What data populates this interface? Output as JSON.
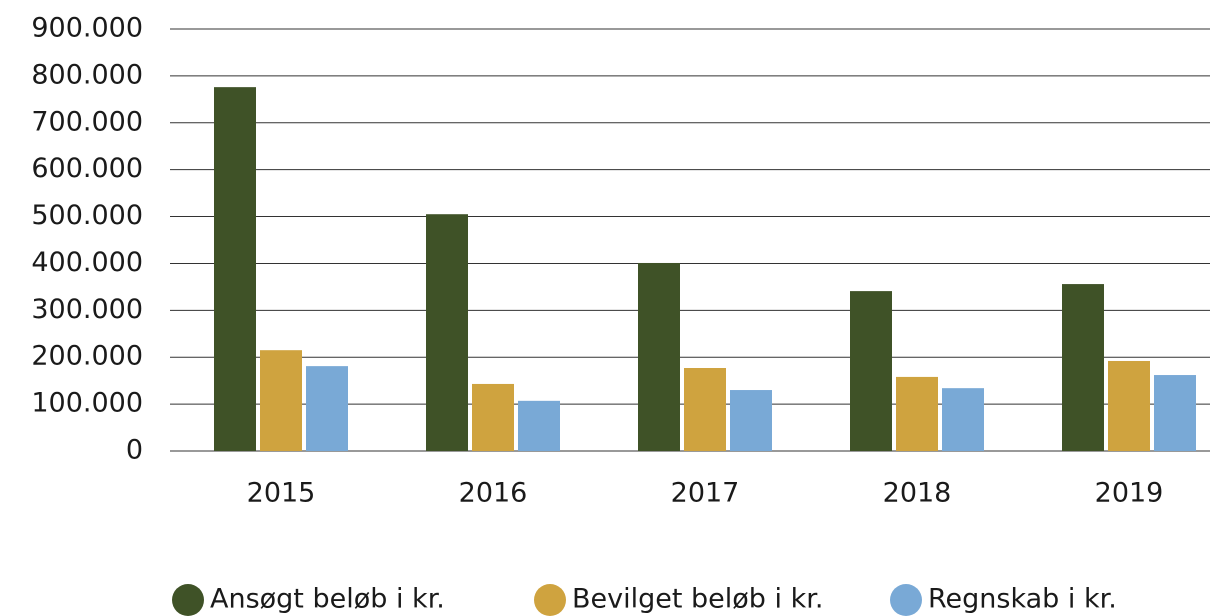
{
  "chart_data": {
    "type": "bar",
    "categories": [
      "2015",
      "2016",
      "2017",
      "2018",
      "2019"
    ],
    "series": [
      {
        "name": "Ansøgt beløb i kr.",
        "color": "#3f5227",
        "values": [
          776000,
          505000,
          401000,
          341000,
          356000
        ]
      },
      {
        "name": "Bevilget beløb i kr.",
        "color": "#cfa33f",
        "values": [
          215000,
          143000,
          177000,
          158000,
          192000
        ]
      },
      {
        "name": "Regnskab i kr.",
        "color": "#79a9d6",
        "values": [
          181000,
          107000,
          130000,
          134000,
          162000
        ]
      }
    ],
    "ylim": [
      0,
      900000
    ],
    "yticks": [
      0,
      {
        "value": 100000,
        "label": "100.000"
      },
      {
        "value": 200000,
        "label": "200.000"
      },
      {
        "value": 300000,
        "label": "300.000"
      },
      {
        "value": 400000,
        "label": "400.000"
      },
      {
        "value": 500000,
        "label": "500.000"
      },
      {
        "value": 600000,
        "label": "600.000"
      },
      {
        "value": 700000,
        "label": "700.000"
      },
      {
        "value": 800000,
        "label": "800.000"
      },
      {
        "value": 900000,
        "label": "900.000"
      }
    ],
    "grid": true,
    "legend": "bottom"
  }
}
